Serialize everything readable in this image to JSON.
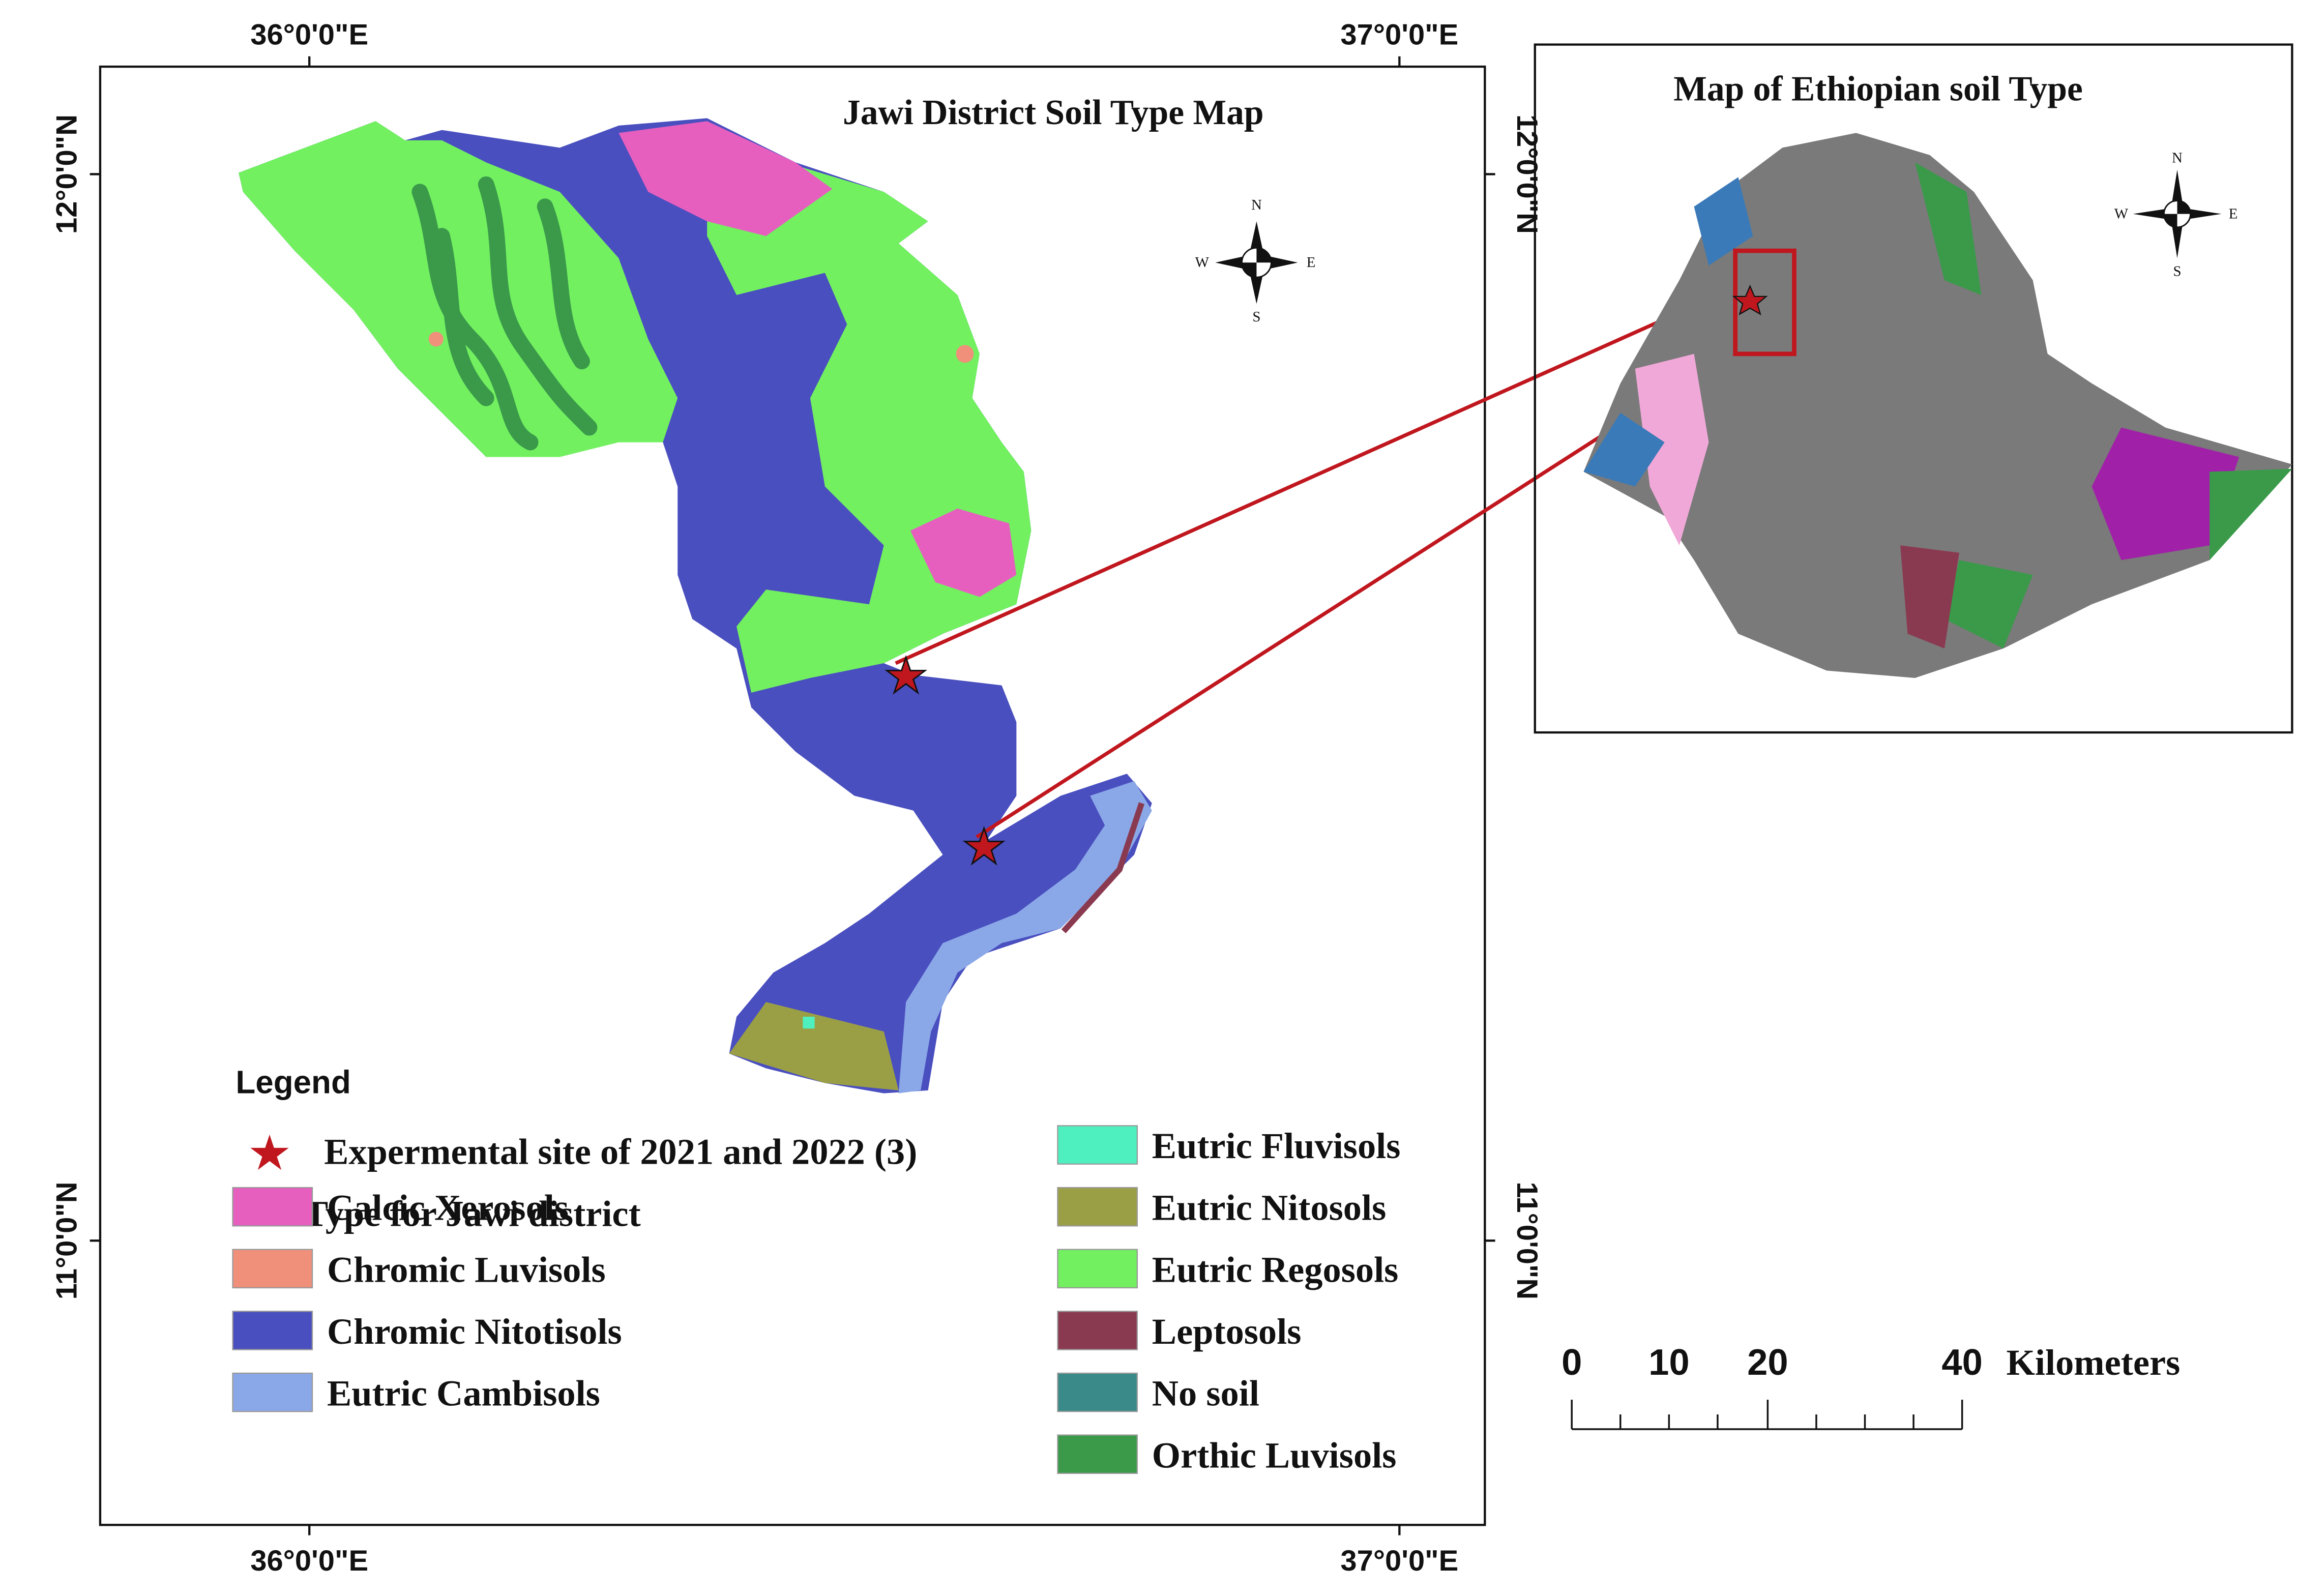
{
  "main_map": {
    "title": "Jawi District Soil Type Map",
    "top_labels": [
      "36°0'0\"E",
      "37°0'0\"E"
    ],
    "bottom_labels": [
      "36°0'0\"E",
      "37°0'0\"E"
    ],
    "left_labels": [
      "12°0'0\"N",
      "11°0'0\"N"
    ],
    "right_labels": [
      "12°0'0\"N",
      "11°0'0\"N"
    ],
    "compass": [
      "N",
      "E",
      "S",
      "W"
    ]
  },
  "inset_map": {
    "title": "Map of Ethiopian soil Type",
    "compass": [
      "N",
      "E",
      "S",
      "W"
    ]
  },
  "legend": {
    "title": "Legend",
    "site": "Expermental site of 2021 and 2022 (3)",
    "group_title": "Soil Type for Jawi district",
    "items": [
      {
        "label": "Calcic Xerosols",
        "color": "#e65fbf"
      },
      {
        "label": "Chromic Luvisols",
        "color": "#f0907a"
      },
      {
        "label": "Chromic Nitotisols",
        "color": "#4a4fbf"
      },
      {
        "label": "Eutric Cambisols",
        "color": "#8aa8e8"
      },
      {
        "label": "Eutric Fluvisols",
        "color": "#4ff0c0"
      },
      {
        "label": "Eutric Nitosols",
        "color": "#9a9f46"
      },
      {
        "label": "Eutric Regosols",
        "color": "#72f060"
      },
      {
        "label": "Leptosols",
        "color": "#8a3a50"
      },
      {
        "label": "No soil",
        "color": "#3a8a8a"
      },
      {
        "label": "Orthic Luvisols",
        "color": "#3a9a4a"
      }
    ]
  },
  "scale_bar": {
    "labels": [
      "0",
      "10",
      "20",
      "40"
    ],
    "unit": "Kilometers"
  }
}
